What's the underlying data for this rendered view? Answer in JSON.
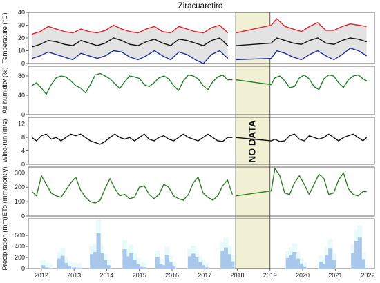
{
  "chart_data": {
    "type": "multi-panel time series",
    "title": "Ziracuaretiro",
    "x_axis": {
      "range": [
        2011.6,
        2022.2
      ],
      "ticks": [
        "2012",
        "2013",
        "2014",
        "2015",
        "2016",
        "2017",
        "2018",
        "2019",
        "2020",
        "2021",
        "2022"
      ]
    },
    "no_data": {
      "label": "NO DATA",
      "from": 2017.95,
      "to": 2019.0
    },
    "colors": {
      "tmax": "#e0202a",
      "tmean": "#111111",
      "tmin": "#1f2aa8",
      "band": "#e3e3e3",
      "humidity": "#1e7f26",
      "wind": "#111111",
      "eto": "#2e7d24",
      "precip": "#a9c7ea",
      "precip_bg": "#e8fbfb",
      "no_data_fill": "#f1f0d4"
    },
    "panels": [
      {
        "id": "temperature",
        "ylabel": "Temperature (°C)",
        "ylim": [
          0,
          40
        ],
        "yticks": [
          "0",
          "10",
          "20",
          "30",
          "40"
        ],
        "series": [
          {
            "key": "tmax",
            "x": [
              2011.71,
              2011.96,
              2012.21,
              2012.46,
              2012.71,
              2012.96,
              2013.21,
              2013.46,
              2013.71,
              2013.96,
              2014.21,
              2014.46,
              2014.71,
              2014.96,
              2015.21,
              2015.46,
              2015.71,
              2015.96,
              2016.21,
              2016.46,
              2016.71,
              2016.96,
              2017.21,
              2017.46,
              2017.71,
              2017.96,
              2019.04,
              2019.21,
              2019.46,
              2019.71,
              2019.96,
              2020.21,
              2020.46,
              2020.71,
              2020.96,
              2021.21,
              2021.46,
              2021.71,
              2021.96
            ],
            "y": [
              23,
              25,
              29,
              27,
              25,
              24,
              27,
              25,
              24,
              26,
              30,
              27,
              25,
              24,
              27,
              29,
              25,
              24,
              29,
              27,
              25,
              24,
              28,
              30,
              24,
              24,
              30,
              35,
              29,
              27,
              25,
              29,
              32,
              26,
              26,
              29,
              31,
              30,
              29
            ]
          },
          {
            "key": "tmean",
            "x": [
              2011.71,
              2011.96,
              2012.21,
              2012.46,
              2012.71,
              2012.96,
              2013.21,
              2013.46,
              2013.71,
              2013.96,
              2014.21,
              2014.46,
              2014.71,
              2014.96,
              2015.21,
              2015.46,
              2015.71,
              2015.96,
              2016.21,
              2016.46,
              2016.71,
              2016.96,
              2017.21,
              2017.46,
              2017.71,
              2017.96,
              2019.04,
              2019.21,
              2019.46,
              2019.71,
              2019.96,
              2020.21,
              2020.46,
              2020.71,
              2020.96,
              2021.21,
              2021.46,
              2021.71,
              2021.96
            ],
            "y": [
              13,
              15,
              18,
              17,
              15,
              14,
              18,
              16,
              14,
              16,
              20,
              18,
              15,
              14,
              17,
              19,
              16,
              14,
              19,
              18,
              16,
              14,
              18,
              20,
              14,
              14,
              16,
              20,
              18,
              16,
              15,
              18,
              20,
              16,
              15,
              18,
              20,
              19,
              17
            ]
          },
          {
            "key": "tmin",
            "x": [
              2011.71,
              2011.96,
              2012.21,
              2012.46,
              2012.71,
              2012.96,
              2013.21,
              2013.46,
              2013.71,
              2013.96,
              2014.21,
              2014.46,
              2014.71,
              2014.96,
              2015.21,
              2015.46,
              2015.71,
              2015.96,
              2016.21,
              2016.46,
              2016.71,
              2016.96,
              2017.21,
              2017.46,
              2017.71,
              2017.96,
              2019.04,
              2019.21,
              2019.46,
              2019.71,
              2019.96,
              2020.21,
              2020.46,
              2020.71,
              2020.96,
              2021.21,
              2021.46,
              2021.71,
              2021.96
            ],
            "y": [
              4,
              6,
              9,
              7,
              5,
              3,
              8,
              6,
              4,
              6,
              10,
              9,
              5,
              3,
              6,
              10,
              6,
              3,
              9,
              7,
              3,
              0,
              7,
              10,
              4,
              3,
              4,
              10,
              8,
              5,
              3,
              7,
              10,
              6,
              3,
              7,
              12,
              10,
              6
            ]
          }
        ]
      },
      {
        "id": "humidity",
        "ylabel": "Air humidity (%)",
        "ylim": [
          0,
          100
        ],
        "yticks": [
          "0",
          "40",
          "80"
        ],
        "series": [
          {
            "key": "humidity",
            "x": [
              2011.71,
              2011.85,
              2012.0,
              2012.15,
              2012.3,
              2012.45,
              2012.6,
              2012.75,
              2012.9,
              2013.05,
              2013.2,
              2013.35,
              2013.5,
              2013.65,
              2013.8,
              2013.95,
              2014.1,
              2014.25,
              2014.4,
              2014.55,
              2014.7,
              2014.85,
              2015.0,
              2015.15,
              2015.3,
              2015.45,
              2015.6,
              2015.75,
              2015.9,
              2016.05,
              2016.2,
              2016.35,
              2016.5,
              2016.65,
              2016.8,
              2016.95,
              2017.1,
              2017.25,
              2017.4,
              2017.55,
              2017.7,
              2017.85,
              2017.95,
              2019.04,
              2019.15,
              2019.3,
              2019.45,
              2019.6,
              2019.75,
              2019.9,
              2020.05,
              2020.2,
              2020.35,
              2020.5,
              2020.65,
              2020.8,
              2020.95,
              2021.1,
              2021.25,
              2021.4,
              2021.55,
              2021.7,
              2021.85,
              2021.96
            ],
            "y": [
              60,
              66,
              55,
              42,
              62,
              76,
              80,
              78,
              70,
              60,
              55,
              45,
              62,
              82,
              85,
              80,
              74,
              64,
              54,
              68,
              80,
              78,
              75,
              62,
              58,
              66,
              76,
              80,
              74,
              60,
              50,
              70,
              82,
              80,
              74,
              60,
              52,
              68,
              78,
              82,
              72,
              72,
              72,
              62,
              76,
              80,
              70,
              56,
              58,
              76,
              82,
              74,
              58,
              52,
              74,
              82,
              80,
              66,
              56,
              72,
              80,
              82,
              74,
              70
            ]
          }
        ]
      },
      {
        "id": "wind",
        "ylabel": "Wind-run (m/s)",
        "ylim": [
          0,
          14
        ],
        "yticks": [
          "0",
          "4",
          "8",
          "12"
        ],
        "series": [
          {
            "key": "wind",
            "x": [
              2011.71,
              2011.85,
              2012.0,
              2012.15,
              2012.3,
              2012.45,
              2012.6,
              2012.75,
              2012.9,
              2013.05,
              2013.2,
              2013.35,
              2013.5,
              2013.65,
              2013.8,
              2013.95,
              2014.1,
              2014.25,
              2014.4,
              2014.55,
              2014.7,
              2014.85,
              2015.0,
              2015.15,
              2015.3,
              2015.45,
              2015.6,
              2015.75,
              2015.9,
              2016.05,
              2016.2,
              2016.35,
              2016.5,
              2016.65,
              2016.8,
              2016.95,
              2017.1,
              2017.25,
              2017.4,
              2017.55,
              2017.7,
              2017.85,
              2017.95,
              2019.04,
              2019.15,
              2019.3,
              2019.45,
              2019.6,
              2019.75,
              2019.9,
              2020.05,
              2020.2,
              2020.35,
              2020.5,
              2020.65,
              2020.8,
              2020.95,
              2021.1,
              2021.25,
              2021.4,
              2021.55,
              2021.7,
              2021.85,
              2021.96
            ],
            "y": [
              8,
              7,
              8.5,
              9,
              7.5,
              8,
              7,
              8,
              9,
              8.5,
              9,
              8,
              7,
              6.5,
              6,
              6.8,
              8,
              9,
              8,
              7.5,
              8,
              7,
              8,
              9,
              7.5,
              7,
              8,
              8.5,
              7.5,
              7,
              8,
              9,
              8,
              7.5,
              7,
              8,
              9,
              8,
              7,
              6.8,
              8,
              8,
              8,
              7,
              7.5,
              6.8,
              7,
              8.5,
              9,
              7.5,
              7,
              8.5,
              8,
              7.5,
              8,
              9,
              8,
              7,
              8,
              8.5,
              9,
              8,
              7,
              8
            ]
          }
        ]
      },
      {
        "id": "eto",
        "ylabel": "ETo (mm/montly)",
        "ylim": [
          0,
          340
        ],
        "yticks": [
          "0",
          "100",
          "200",
          "300"
        ],
        "series": [
          {
            "key": "eto",
            "x": [
              2011.71,
              2011.85,
              2012.0,
              2012.15,
              2012.3,
              2012.45,
              2012.6,
              2012.75,
              2012.9,
              2013.05,
              2013.2,
              2013.35,
              2013.5,
              2013.65,
              2013.8,
              2013.95,
              2014.1,
              2014.25,
              2014.4,
              2014.55,
              2014.7,
              2014.85,
              2015.0,
              2015.15,
              2015.3,
              2015.45,
              2015.6,
              2015.75,
              2015.9,
              2016.05,
              2016.2,
              2016.35,
              2016.5,
              2016.65,
              2016.8,
              2016.95,
              2017.1,
              2017.25,
              2017.4,
              2017.55,
              2017.7,
              2017.85,
              2017.95,
              2019.04,
              2019.15,
              2019.3,
              2019.45,
              2019.6,
              2019.75,
              2019.9,
              2020.05,
              2020.2,
              2020.35,
              2020.5,
              2020.65,
              2020.8,
              2020.95,
              2021.1,
              2021.25,
              2021.4,
              2021.55,
              2021.7,
              2021.85,
              2021.96
            ],
            "y": [
              170,
              140,
              280,
              220,
              160,
              140,
              130,
              180,
              230,
              270,
              180,
              130,
              100,
              90,
              110,
              190,
              260,
              190,
              140,
              150,
              120,
              130,
              200,
              210,
              150,
              120,
              150,
              220,
              200,
              140,
              120,
              110,
              150,
              230,
              270,
              160,
              130,
              110,
              140,
              210,
              250,
              150,
              140,
              175,
              330,
              280,
              160,
              150,
              230,
              280,
              220,
              150,
              220,
              290,
              260,
              150,
              160,
              250,
              300,
              190,
              150,
              140,
              170,
              170
            ]
          }
        ]
      },
      {
        "id": "precipitation",
        "ylabel": "Precipitation (mm)",
        "ylim": [
          0,
          900
        ],
        "yticks": [
          "0",
          "200",
          "400",
          "600"
        ],
        "bars": {
          "x": [
            2012.05,
            2012.15,
            2012.25,
            2012.55,
            2012.65,
            2012.75,
            2012.85,
            2013.0,
            2013.15,
            2013.55,
            2013.65,
            2013.75,
            2013.85,
            2013.95,
            2014.05,
            2014.55,
            2014.65,
            2014.75,
            2014.85,
            2014.95,
            2015.05,
            2015.15,
            2015.55,
            2015.65,
            2015.75,
            2015.85,
            2015.95,
            2016.05,
            2016.55,
            2016.65,
            2016.75,
            2016.85,
            2016.95,
            2017.05,
            2017.55,
            2017.65,
            2017.75,
            2017.85,
            2019.55,
            2019.65,
            2019.75,
            2019.85,
            2019.95,
            2020.05,
            2020.55,
            2020.65,
            2020.75,
            2020.85,
            2020.95,
            2021.55,
            2021.65,
            2021.75,
            2021.85
          ],
          "values": [
            60,
            20,
            10,
            180,
            230,
            100,
            40,
            20,
            10,
            260,
            300,
            640,
            280,
            150,
            60,
            350,
            220,
            280,
            160,
            80,
            30,
            20,
            200,
            80,
            60,
            250,
            120,
            40,
            220,
            270,
            200,
            120,
            60,
            20,
            320,
            380,
            260,
            130,
            190,
            240,
            300,
            180,
            90,
            30,
            120,
            80,
            240,
            360,
            160,
            280,
            500,
            560,
            170
          ]
        }
      }
    ]
  }
}
